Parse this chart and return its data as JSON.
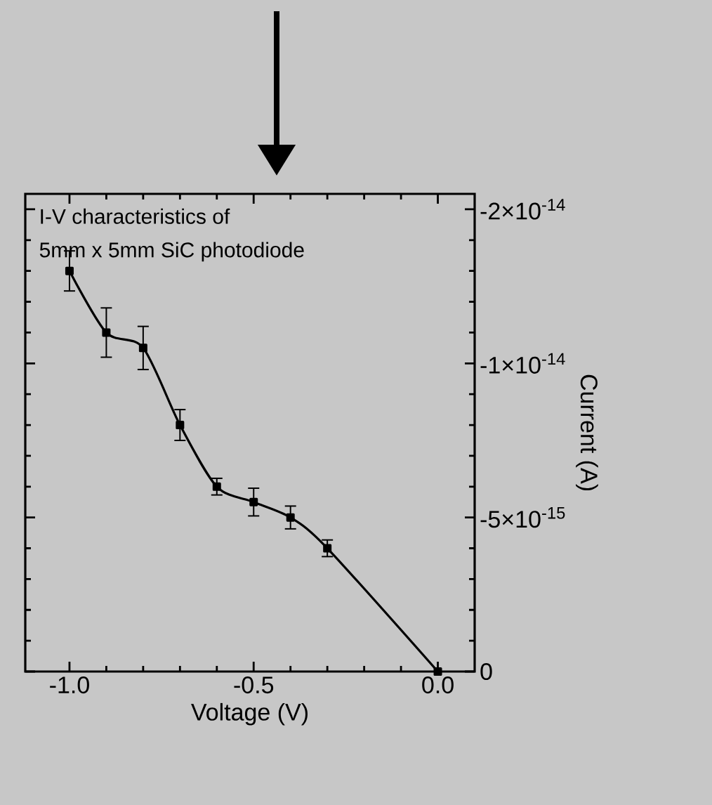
{
  "chart_data": {
    "type": "line",
    "xlabel": "Voltage (V)",
    "ylabel": "Current (A)",
    "annotations": [
      "I-V characteristics of",
      "5mm x 5mm SiC photodiode"
    ],
    "x": [
      0.0,
      -0.3,
      -0.4,
      -0.5,
      -0.6,
      -0.7,
      -0.8,
      -0.9,
      -1.0
    ],
    "series": [
      {
        "color": "#000000",
        "values": [
          0,
          -4e-15,
          -5e-15,
          -5.5e-15,
          -6e-15,
          -8e-15,
          -1.05e-14,
          -1.1e-14,
          -1.3e-14
        ],
        "errors": [
          null,
          2.7e-16,
          3.7e-16,
          4.5e-16,
          2.7e-16,
          5e-16,
          7e-16,
          8e-16,
          6.5e-16
        ]
      }
    ],
    "xlim": [
      -1.12,
      0.1
    ],
    "xticks": [
      {
        "value": -1.0,
        "label": "-1.0"
      },
      {
        "value": -0.5,
        "label": "-0.5"
      },
      {
        "value": 0.0,
        "label": "0.0"
      }
    ],
    "ylim": [
      0,
      -1.55e-14
    ],
    "yticks": [
      0,
      {
        "value": -5e-15,
        "label": "-5×10$^{-15}$"
      },
      {
        "value": -1e-14,
        "label": "-1×10$^{-14}$"
      },
      {
        "value": -1.5e-14,
        "label": "-2×10$^{-14}$"
      }
    ],
    "marker": "square",
    "line_style": "solid",
    "grid": false
  }
}
